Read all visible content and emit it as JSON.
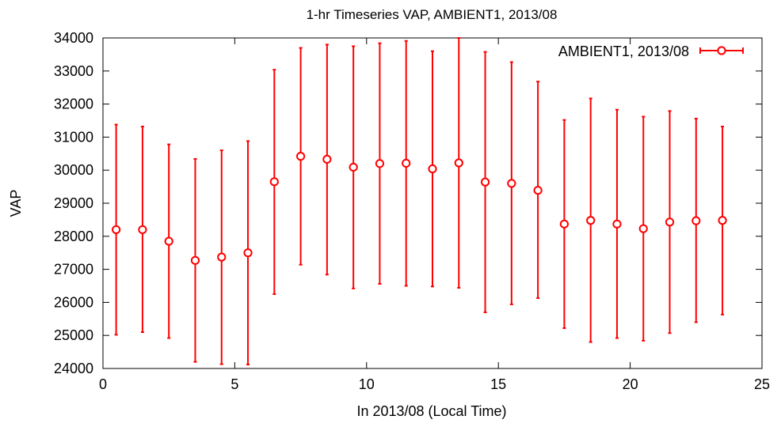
{
  "chart_data": {
    "type": "scatter",
    "title": "1-hr Timeseries VAP, AMBIENT1, 2013/08",
    "xlabel": "In 2013/08 (Local Time)",
    "ylabel": "VAP",
    "xlim": [
      0,
      25
    ],
    "ylim": [
      24000,
      34000
    ],
    "xticks": [
      0,
      5,
      10,
      15,
      20,
      25
    ],
    "yticks": [
      24000,
      25000,
      26000,
      27000,
      28000,
      29000,
      30000,
      31000,
      32000,
      33000,
      34000
    ],
    "grid": false,
    "legend_position": "top-right",
    "colors": {
      "series": "#ff0000"
    },
    "series": [
      {
        "name": "AMBIENT1, 2013/08",
        "x": [
          0.5,
          1.5,
          2.5,
          3.5,
          4.5,
          5.5,
          6.5,
          7.5,
          8.5,
          9.5,
          10.5,
          11.5,
          12.5,
          13.5,
          14.5,
          15.5,
          16.5,
          17.5,
          18.5,
          19.5,
          20.5,
          21.5,
          22.5,
          23.5
        ],
        "y": [
          28200,
          28200,
          27850,
          27270,
          27370,
          27500,
          29650,
          30420,
          30330,
          30090,
          30200,
          30210,
          30040,
          30220,
          29640,
          29600,
          29390,
          28370,
          28480,
          28370,
          28230,
          28430,
          28470,
          28480
        ],
        "ymin": [
          25020,
          25100,
          24920,
          24200,
          24130,
          24120,
          26250,
          27140,
          26840,
          26420,
          26560,
          26500,
          26480,
          26440,
          25700,
          25940,
          26130,
          25220,
          24800,
          24920,
          24840,
          25070,
          25400,
          25630
        ],
        "ymax": [
          31380,
          31320,
          30780,
          30340,
          30600,
          30880,
          33040,
          33700,
          33800,
          33750,
          33840,
          33910,
          33600,
          34000,
          33580,
          33270,
          32680,
          31520,
          32170,
          31830,
          31620,
          31790,
          31560,
          31320
        ]
      }
    ]
  }
}
